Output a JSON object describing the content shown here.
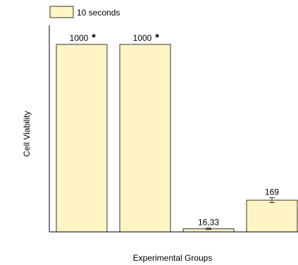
{
  "chart_data": {
    "type": "bar",
    "title": "",
    "xlabel": "Experimental Groups",
    "ylabel": "Cell Viability",
    "legend": {
      "entries": [
        "10 seconds"
      ],
      "placement": "top-left"
    },
    "ylim": [
      0,
      1000
    ],
    "series": [
      {
        "name": "10 seconds",
        "color": "#FFF5C4",
        "values": [
          1000,
          1000,
          16.33,
          169
        ],
        "error": [
          0,
          0,
          4,
          13
        ],
        "labels": [
          "1000",
          "1000",
          "16,33",
          "169"
        ],
        "annotations": [
          "*",
          "*",
          "",
          ""
        ]
      }
    ],
    "grid": false
  }
}
